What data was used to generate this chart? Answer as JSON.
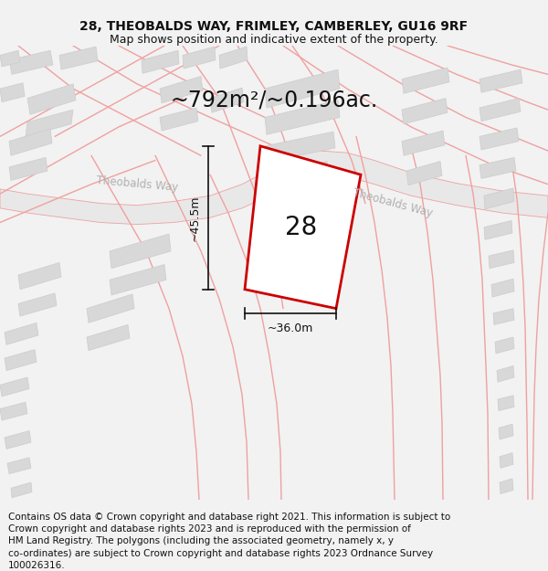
{
  "title_line1": "28, THEOBALDS WAY, FRIMLEY, CAMBERLEY, GU16 9RF",
  "title_line2": "Map shows position and indicative extent of the property.",
  "area_label": "~792m²/~0.196ac.",
  "width_label": "~36.0m",
  "height_label": "~45.5m",
  "plot_number": "28",
  "road_label1": "Theobalds Way",
  "road_label2": "Theobalds Way",
  "footer": "Contains OS data © Crown copyright and database right 2021. This information is subject to Crown copyright and database rights 2023 and is reproduced with the permission of HM Land Registry. The polygons (including the associated geometry, namely x, y co-ordinates) are subject to Crown copyright and database rights 2023 Ordnance Survey 100026316.",
  "bg_color": "#f2f2f2",
  "map_bg": "#ffffff",
  "plot_fill": "#ffffff",
  "plot_edge": "#cc0000",
  "road_line_color": "#f0a0a0",
  "road_area_color": "#e8e8e8",
  "building_fill": "#d8d8d8",
  "building_edge": "#cccccc",
  "dim_color": "#111111",
  "text_dark": "#111111",
  "road_text": "#b0b0b0",
  "title_fs": 10,
  "sub_fs": 9,
  "area_fs": 17,
  "dim_fs": 9,
  "label_fs": 20,
  "footer_fs": 7.5,
  "road_fs": 8.5
}
